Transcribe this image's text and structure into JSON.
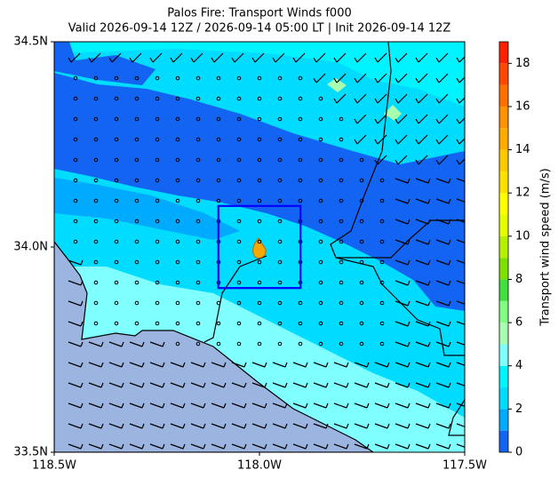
{
  "chart_data": {
    "type": "map",
    "title": "Palos Fire: Transport Winds f000",
    "subtitle": "Valid 2026-09-14 12Z / 2026-09-14 05:00 LT | Init 2026-09-14 12Z",
    "xlim": [
      -118.5,
      -117.5
    ],
    "xticks": [
      {
        "value": -118.5,
        "label": "118.5W"
      },
      {
        "value": -118,
        "label": "118.0W"
      },
      {
        "value": -117.5,
        "label": "117.5W"
      }
    ],
    "ylim": [
      33.5,
      34.5
    ],
    "yticks": [
      {
        "value": 33.5,
        "label": "33.5N"
      },
      {
        "value": 34,
        "label": "34.0N"
      },
      {
        "value": 34.5,
        "label": "34.5N"
      }
    ],
    "box": {
      "xlim": [
        -118.1,
        -117.9
      ],
      "ylim": [
        33.9,
        34.1
      ],
      "color": "#0000ff"
    },
    "colorbar": {
      "label": "Transport wind speed (m/s)",
      "levels": [
        0,
        1,
        2,
        3,
        4,
        5,
        6,
        7,
        8,
        9,
        10,
        11,
        12,
        13,
        14,
        15,
        16,
        17,
        18,
        19
      ],
      "colors": [
        "#1464f4",
        "#00aaff",
        "#00dcff",
        "#00f4ff",
        "#7fffff",
        "#a8ffb0",
        "#80ff80",
        "#40e040",
        "#7de000",
        "#b4f000",
        "#e6ff00",
        "#ffff00",
        "#ffe000",
        "#ffc800",
        "#ffaa00",
        "#ff9000",
        "#ff7000",
        "#ff4800",
        "#ff2000"
      ],
      "ticks": [
        0,
        2,
        4,
        6,
        8,
        10,
        12,
        14,
        16,
        18
      ]
    }
  }
}
